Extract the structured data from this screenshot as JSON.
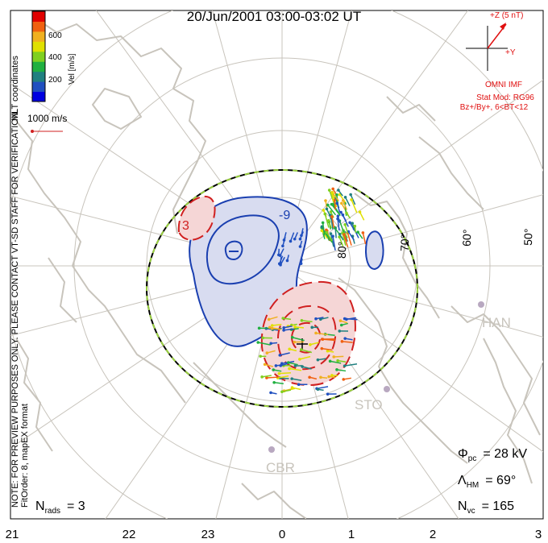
{
  "header": {
    "title": "20/Jun/2001 03:00-03:02 UT"
  },
  "colorbar": {
    "label": "Vel [m/s]",
    "ticks": [
      "600",
      "400",
      "200"
    ],
    "colors": [
      "#e00000",
      "#f06010",
      "#f0b020",
      "#e0e000",
      "#80d020",
      "#20b040",
      "#208080",
      "#2050c0",
      "#0000e0"
    ]
  },
  "side_text": {
    "coords": "MLT coordinates",
    "note": "NOTE: FOR PREVIEW PURPOSES ONLY. PLEASE CONTACT VT-SD STAFF FOR VERIFICATION.",
    "fit_order": "FitOrder: 8, mapEX format"
  },
  "scale_vector": {
    "label": "1000 m/s"
  },
  "imf": {
    "z_label": "+Z (5 nT)",
    "y_label": "+Y",
    "omni": "OMNI IMF",
    "model": "Stat Mod: RG96",
    "condition": "Bz+/By+, 6<BT<12"
  },
  "latitudes": [
    "50°",
    "60°",
    "70°",
    "80°"
  ],
  "contour_labels": [
    "3",
    "-9"
  ],
  "stations": [
    "HAN",
    "STO",
    "CBR"
  ],
  "stats": {
    "phi_sym": "Φ",
    "phi_sub": "pc",
    "phi_value": "= 28 kV",
    "lambda_sym": "Λ",
    "lambda_sub": "HM",
    "lambda_value": "= 69°",
    "nvc_sym": "N",
    "nvc_sub": "vc",
    "nvc_value": "= 165",
    "nrads_sym": "N",
    "nrads_sub": "rads",
    "nrads_value": "= 3"
  },
  "mlt_axis": [
    "21",
    "22",
    "23",
    "0",
    "1",
    "2",
    "3"
  ],
  "colors": {
    "coast": "#c8c4bc",
    "grid": "#c8c4bc",
    "negative": "#1a3fb0",
    "positive": "#d02020",
    "neg_fill": "#d8dcf0",
    "pos_fill": "#f5d6d6",
    "imf": "#e01010"
  }
}
